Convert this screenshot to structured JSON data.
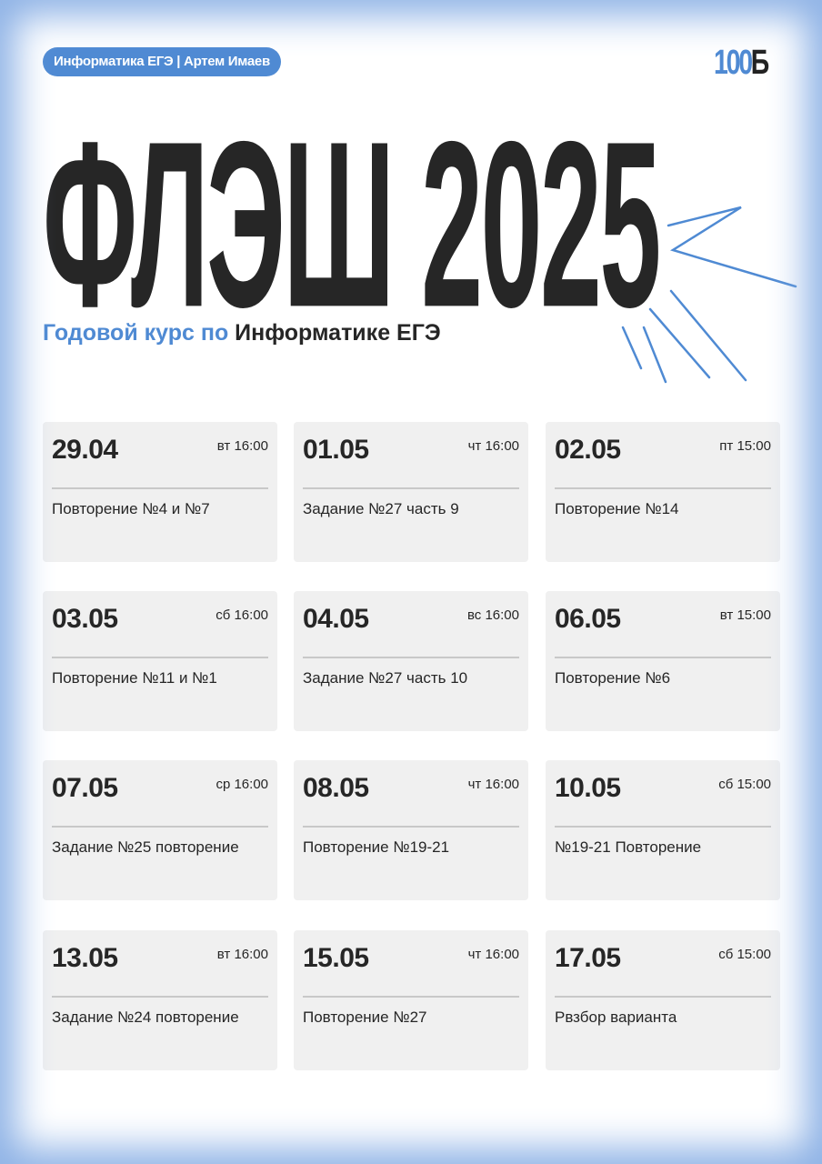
{
  "header": {
    "badge": "Информатика ЕГЭ | Артем Имаев",
    "logo_number": "100",
    "logo_letter": "Б"
  },
  "title": "ФЛЭШ 2025",
  "subtitle": {
    "part1": "Годовой курс по ",
    "part2": "Информатике ЕГЭ"
  },
  "colors": {
    "accent": "#4f8ad3",
    "text": "#262626",
    "card": "#f0f0f0"
  },
  "lessons": [
    {
      "date": "29.04",
      "time": "вт 16:00",
      "topic": "Повторение №4 и №7"
    },
    {
      "date": "01.05",
      "time": "чт 16:00",
      "topic": "Задание №27 часть 9"
    },
    {
      "date": "02.05",
      "time": "пт 15:00",
      "topic": "Повторение №14"
    },
    {
      "date": "03.05",
      "time": "сб 16:00",
      "topic": "Повторение №11 и №1"
    },
    {
      "date": "04.05",
      "time": "вс 16:00",
      "topic": "Задание №27 часть 10"
    },
    {
      "date": "06.05",
      "time": "вт 15:00",
      "topic": "Повторение №6"
    },
    {
      "date": "07.05",
      "time": "ср 16:00",
      "topic": "Задание №25 повторение"
    },
    {
      "date": "08.05",
      "time": "чт 16:00",
      "topic": "Повторение №19-21"
    },
    {
      "date": "10.05",
      "time": "сб 15:00",
      "topic": "№19-21 Повторение"
    },
    {
      "date": "13.05",
      "time": "вт 16:00",
      "topic": "Задание №24 повторение"
    },
    {
      "date": "15.05",
      "time": "чт 16:00",
      "topic": "Повторение №27"
    },
    {
      "date": "17.05",
      "time": "сб 15:00",
      "topic": "Рвзбор варианта"
    }
  ]
}
